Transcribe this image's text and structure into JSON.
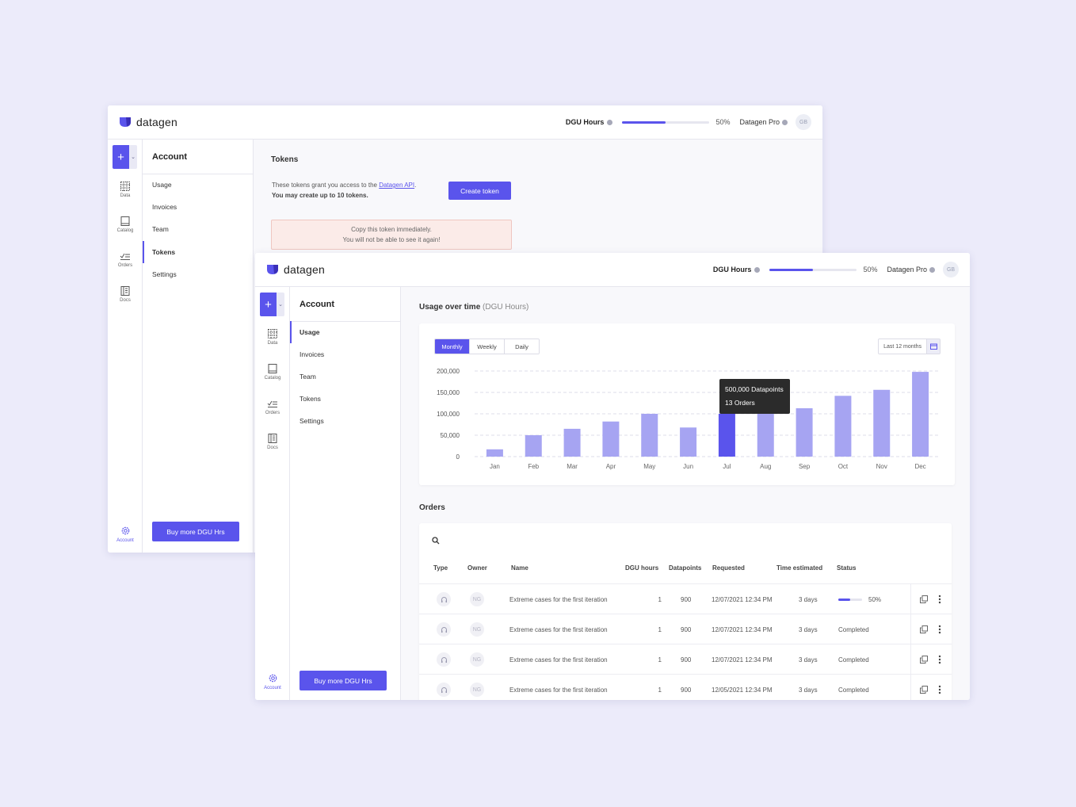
{
  "brand": {
    "name": "datagen",
    "accent": "#5a54ec"
  },
  "topbar": {
    "dgu_label": "DGU Hours",
    "dgu_percent_text": "50%",
    "dgu_progress": 0.5,
    "plan": "Datagen Pro",
    "avatar": "GB"
  },
  "rail": {
    "data": "Data",
    "catalog": "Catalog",
    "orders": "Orders",
    "docs": "Docs",
    "account": "Account"
  },
  "subnav": {
    "title": "Account",
    "items": [
      "Usage",
      "Invoices",
      "Team",
      "Tokens",
      "Settings"
    ],
    "buy_label": "Buy more DGU Hrs"
  },
  "back_window": {
    "active_item": "Tokens",
    "tokens": {
      "title": "Tokens",
      "desc_prefix": "These tokens grant you access to the ",
      "desc_link": "Datagen API",
      "desc_suffix": ".",
      "desc_limit": "You may create up to 10 tokens.",
      "create_label": "Create token",
      "warn_line1": "Copy this token immediately.",
      "warn_line2": "You will not be able to see it again!"
    }
  },
  "front_window": {
    "active_item": "Usage",
    "usage": {
      "title": "Usage over time",
      "title_unit": "(DGU Hours)",
      "tabs": [
        "Monthly",
        "Weekly",
        "Daily"
      ],
      "active_tab": "Monthly",
      "range_label": "Last 12 months",
      "tooltip_line1": "500,000 Datapoints",
      "tooltip_line2": "13 Orders"
    },
    "orders": {
      "title": "Orders",
      "headers": {
        "type": "Type",
        "owner": "Owner",
        "name": "Name",
        "dgu": "DGU hours",
        "datapoints": "Datapoints",
        "requested": "Requested",
        "time": "Time estimated",
        "status": "Status"
      },
      "rows": [
        {
          "owner": "NG",
          "name": "Extreme cases for the first iteration",
          "dgu": "1",
          "datapoints": "900",
          "requested": "12/07/2021 12:34 PM",
          "time": "3 days",
          "status": "50%",
          "progress": 0.5
        },
        {
          "owner": "NG",
          "name": "Extreme cases for the first iteration",
          "dgu": "1",
          "datapoints": "900",
          "requested": "12/07/2021 12:34 PM",
          "time": "3 days",
          "status": "Completed"
        },
        {
          "owner": "NG",
          "name": "Extreme cases for the first iteration",
          "dgu": "1",
          "datapoints": "900",
          "requested": "12/07/2021 12:34 PM",
          "time": "3 days",
          "status": "Completed"
        },
        {
          "owner": "NG",
          "name": "Extreme cases for the first iteration",
          "dgu": "1",
          "datapoints": "900",
          "requested": "12/05/2021 12:34 PM",
          "time": "3 days",
          "status": "Completed"
        }
      ]
    }
  },
  "chart_data": {
    "type": "bar",
    "categories": [
      "Jan",
      "Feb",
      "Mar",
      "Apr",
      "May",
      "Jun",
      "Jul",
      "Aug",
      "Sep",
      "Oct",
      "Nov",
      "Dec"
    ],
    "values": [
      17000,
      50000,
      65000,
      82000,
      100000,
      68000,
      100000,
      110000,
      113000,
      142000,
      156000,
      198000
    ],
    "highlight_index": 6,
    "ylim": [
      0,
      200000
    ],
    "yticks": [
      "0",
      "50,000",
      "100,000",
      "150,000",
      "200,000"
    ],
    "bar_color": "#a6a4f2",
    "highlight_color": "#5a54ec",
    "grid": true
  }
}
